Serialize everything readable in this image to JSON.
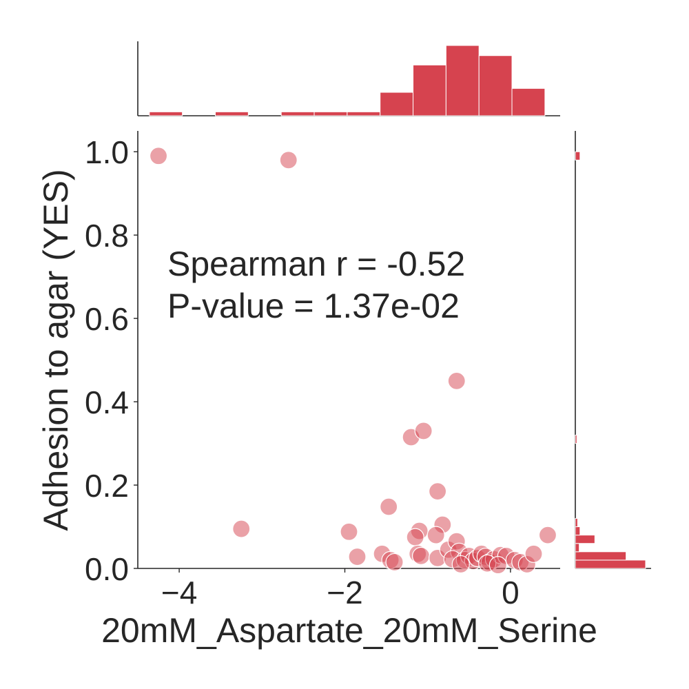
{
  "chart_data": {
    "type": "scatter",
    "xlabel": "20mM_Aspartate_20mM_Serine",
    "ylabel": "Adhesion to agar (YES)",
    "xlim": [
      -4.5,
      0.6
    ],
    "ylim": [
      0.0,
      1.05
    ],
    "x_ticks": [
      {
        "value": -4,
        "label": "−4"
      },
      {
        "value": -2,
        "label": "−2"
      },
      {
        "value": 0,
        "label": "0"
      }
    ],
    "y_ticks": [
      {
        "value": 0.0,
        "label": "0.0"
      },
      {
        "value": 0.2,
        "label": "0.2"
      },
      {
        "value": 0.4,
        "label": "0.4"
      },
      {
        "value": 0.6,
        "label": "0.6"
      },
      {
        "value": 0.8,
        "label": "0.8"
      },
      {
        "value": 1.0,
        "label": "1.0"
      }
    ],
    "annotation": {
      "line1": "Spearman r = -0.52",
      "line2": "P-value = 1.37e-02"
    },
    "grid": false,
    "colors": {
      "marker": "#d6434f",
      "bar": "#d6434f",
      "axis": "#262626"
    },
    "points": [
      {
        "x": -4.25,
        "y": 0.99
      },
      {
        "x": -2.68,
        "y": 0.98
      },
      {
        "x": -3.25,
        "y": 0.095
      },
      {
        "x": -0.65,
        "y": 0.45
      },
      {
        "x": -1.2,
        "y": 0.315
      },
      {
        "x": -1.05,
        "y": 0.33
      },
      {
        "x": -0.88,
        "y": 0.185
      },
      {
        "x": -1.47,
        "y": 0.148
      },
      {
        "x": -0.82,
        "y": 0.105
      },
      {
        "x": -1.95,
        "y": 0.088
      },
      {
        "x": -1.1,
        "y": 0.09
      },
      {
        "x": -1.15,
        "y": 0.075
      },
      {
        "x": -0.9,
        "y": 0.08
      },
      {
        "x": 0.45,
        "y": 0.08
      },
      {
        "x": -1.85,
        "y": 0.028
      },
      {
        "x": -1.55,
        "y": 0.035
      },
      {
        "x": -1.45,
        "y": 0.02
      },
      {
        "x": -1.4,
        "y": 0.015
      },
      {
        "x": -1.12,
        "y": 0.035
      },
      {
        "x": -1.08,
        "y": 0.03
      },
      {
        "x": -0.88,
        "y": 0.025
      },
      {
        "x": -0.75,
        "y": 0.045
      },
      {
        "x": -0.65,
        "y": 0.065
      },
      {
        "x": -0.62,
        "y": 0.04
      },
      {
        "x": -0.7,
        "y": 0.022
      },
      {
        "x": -0.55,
        "y": 0.02
      },
      {
        "x": -0.5,
        "y": 0.03
      },
      {
        "x": -0.45,
        "y": 0.018
      },
      {
        "x": -0.4,
        "y": 0.025
      },
      {
        "x": -0.35,
        "y": 0.035
      },
      {
        "x": -0.3,
        "y": 0.028
      },
      {
        "x": -0.25,
        "y": 0.015
      },
      {
        "x": -0.2,
        "y": 0.022
      },
      {
        "x": -0.12,
        "y": 0.032
      },
      {
        "x": -0.05,
        "y": 0.03
      },
      {
        "x": 0.05,
        "y": 0.02
      },
      {
        "x": 0.12,
        "y": 0.015
      },
      {
        "x": 0.2,
        "y": 0.01
      },
      {
        "x": 0.28,
        "y": 0.035
      },
      {
        "x": -0.6,
        "y": 0.01
      },
      {
        "x": -0.28,
        "y": 0.012
      },
      {
        "x": -0.15,
        "y": 0.008
      }
    ],
    "x_histogram": {
      "bin_start": -4.36,
      "bin_width": 0.398,
      "counts": [
        0.5,
        0,
        0.5,
        0,
        0.5,
        0.5,
        0.5,
        3,
        6.5,
        9,
        7.7,
        3.5
      ]
    },
    "y_histogram": {
      "bin_start": 0.0,
      "bin_width": 0.02,
      "counts": [
        9,
        6.5,
        0.5,
        2.5,
        0.6,
        0.3,
        0,
        0,
        0,
        0,
        0,
        0,
        0,
        0,
        0,
        0.2,
        0,
        0,
        0,
        0,
        0,
        0,
        0,
        0,
        0,
        0,
        0,
        0,
        0,
        0,
        0,
        0,
        0,
        0,
        0,
        0,
        0,
        0,
        0,
        0,
        0,
        0,
        0,
        0,
        0,
        0,
        0,
        0,
        0,
        0.6
      ]
    }
  }
}
